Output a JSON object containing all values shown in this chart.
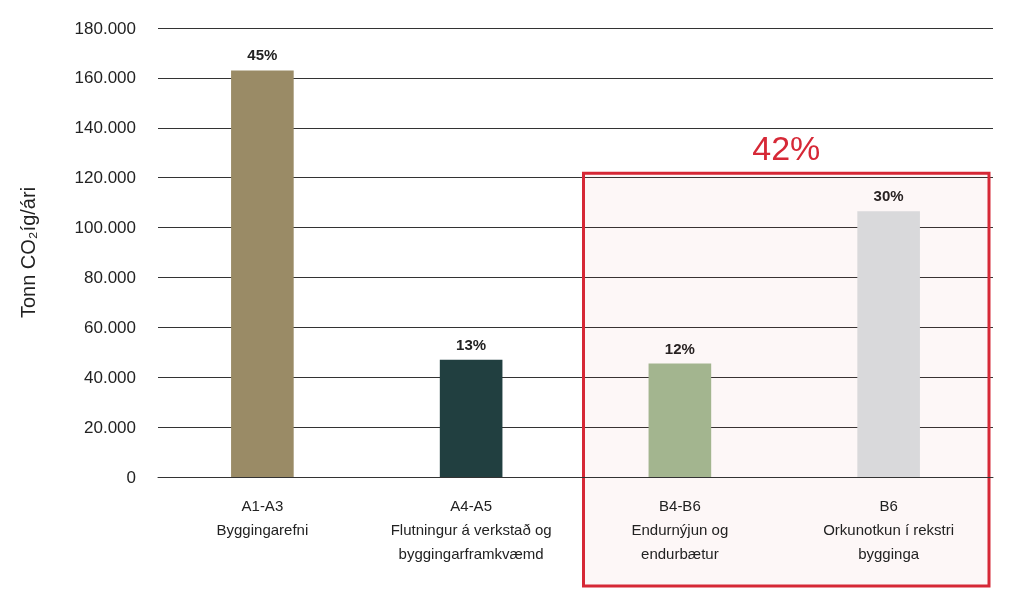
{
  "chart_data": {
    "type": "bar",
    "ylabel": "Tonn CO₂íg/ári",
    "categories": [
      "A1-A3\nByggingarefni",
      "A4-A5\nFlutningur á verkstað og\nbyggingarframkvæmd",
      "B4-B6\nEndurnýjun og\nendurbætur",
      "B6\nOrkunotkun í rekstri\nbygginga"
    ],
    "values": [
      163000,
      47000,
      45500,
      106500
    ],
    "colors": [
      "#9a8b66",
      "#213f40",
      "#a3b58f",
      "#d9d9db"
    ],
    "annotations": [
      {
        "text": "45%",
        "x": "A1-A3\nByggingarefni",
        "y": 163000
      },
      {
        "text": "13%",
        "x": "A4-A5\nFlutningur á verkstað og\nbyggingarframkvæmd",
        "y": 47000
      },
      {
        "text": "12%",
        "x": "B4-B6\nEndurnýjun og\nendurbætur",
        "y": 45500
      },
      {
        "text": "30%",
        "x": "B6\nOrkunotkun í rekstri\nbygginga",
        "y": 106500
      }
    ],
    "ylim": [
      0,
      180000
    ],
    "yticks": [
      {
        "value": 0,
        "label": "0"
      },
      {
        "value": 20000,
        "label": "20.000"
      },
      {
        "value": 40000,
        "label": "40.000"
      },
      {
        "value": 60000,
        "label": "60.000"
      },
      {
        "value": 80000,
        "label": "80.000"
      },
      {
        "value": 100000,
        "label": "100.000"
      },
      {
        "value": 120000,
        "label": "120.000"
      },
      {
        "value": 140000,
        "label": "140.000"
      },
      {
        "value": 160000,
        "label": "160.000"
      },
      {
        "value": 180000,
        "label": "180.000"
      }
    ],
    "grid": "y",
    "bands": [
      {
        "axis": "x",
        "from": "B4-B6\nEndurnýjun og\nendurbætur",
        "to": "B6\nOrkunotkun í rekstri\nbygginga",
        "label": "42%",
        "color": "#d62836"
      }
    ]
  }
}
